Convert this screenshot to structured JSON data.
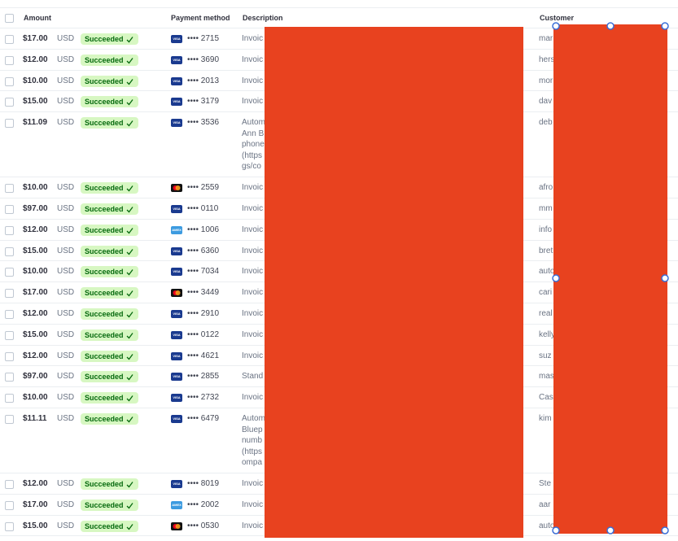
{
  "header": {
    "amount": "Amount",
    "payment_method": "Payment method",
    "description": "Description",
    "customer": "Customer"
  },
  "rows": [
    {
      "amount": "$17.00",
      "currency": "USD",
      "status": "Succeeded",
      "card": "VISA",
      "last4": "•••• 2715",
      "description": [
        "Invoic"
      ],
      "customer": "mar"
    },
    {
      "amount": "$12.00",
      "currency": "USD",
      "status": "Succeeded",
      "card": "VISA",
      "last4": "•••• 3690",
      "description": [
        "Invoic"
      ],
      "customer": "hers"
    },
    {
      "amount": "$10.00",
      "currency": "USD",
      "status": "Succeeded",
      "card": "VISA",
      "last4": "•••• 2013",
      "description": [
        "Invoic"
      ],
      "customer": "mor"
    },
    {
      "amount": "$15.00",
      "currency": "USD",
      "status": "Succeeded",
      "card": "VISA",
      "last4": "•••• 3179",
      "description": [
        "Invoic"
      ],
      "customer": "dav"
    },
    {
      "amount": "$11.09",
      "currency": "USD",
      "status": "Succeeded",
      "card": "VISA",
      "last4": "•••• 3536",
      "description": [
        "Autom",
        "Ann B",
        "phone",
        "(https",
        "gs/co"
      ],
      "customer": "deb"
    },
    {
      "amount": "$10.00",
      "currency": "USD",
      "status": "Succeeded",
      "card": null,
      "last4": "•••• 2559",
      "description": [
        "Invoic"
      ],
      "customer": "afro"
    },
    {
      "amount": "$97.00",
      "currency": "USD",
      "status": "Succeeded",
      "card": "VISA",
      "last4": "•••• 0110",
      "description": [
        "Invoic"
      ],
      "customer": "mm"
    },
    {
      "amount": "$12.00",
      "currency": "USD",
      "status": "Succeeded",
      "card": "AMEX",
      "last4": "•••• 1006",
      "description": [
        "Invoic"
      ],
      "customer": "info"
    },
    {
      "amount": "$15.00",
      "currency": "USD",
      "status": "Succeeded",
      "card": "VISA",
      "last4": "•••• 6360",
      "description": [
        "Invoic"
      ],
      "customer": "bret"
    },
    {
      "amount": "$10.00",
      "currency": "USD",
      "status": "Succeeded",
      "card": "VISA",
      "last4": "•••• 7034",
      "description": [
        "Invoic"
      ],
      "customer": "auto"
    },
    {
      "amount": "$17.00",
      "currency": "USD",
      "status": "Succeeded",
      "card": null,
      "last4": "•••• 3449",
      "description": [
        "Invoic"
      ],
      "customer": "cari"
    },
    {
      "amount": "$12.00",
      "currency": "USD",
      "status": "Succeeded",
      "card": "VISA",
      "last4": "•••• 2910",
      "description": [
        "Invoic"
      ],
      "customer": "real"
    },
    {
      "amount": "$15.00",
      "currency": "USD",
      "status": "Succeeded",
      "card": "VISA",
      "last4": "•••• 0122",
      "description": [
        "Invoic"
      ],
      "customer": "kelly"
    },
    {
      "amount": "$12.00",
      "currency": "USD",
      "status": "Succeeded",
      "card": "VISA",
      "last4": "•••• 4621",
      "description": [
        "Invoic"
      ],
      "customer": "suz"
    },
    {
      "amount": "$97.00",
      "currency": "USD",
      "status": "Succeeded",
      "card": "VISA",
      "last4": "•••• 2855",
      "description": [
        "Stand"
      ],
      "customer": "mas"
    },
    {
      "amount": "$10.00",
      "currency": "USD",
      "status": "Succeeded",
      "card": "VISA",
      "last4": "•••• 2732",
      "description": [
        "Invoic"
      ],
      "customer": "Cas"
    },
    {
      "amount": "$11.11",
      "currency": "USD",
      "status": "Succeeded",
      "card": "VISA",
      "last4": "•••• 6479",
      "description": [
        "Autom",
        "Bluep",
        "numb",
        "(https",
        "ompa"
      ],
      "customer": "kim"
    },
    {
      "amount": "$12.00",
      "currency": "USD",
      "status": "Succeeded",
      "card": "VISA",
      "last4": "•••• 8019",
      "description": [
        "Invoic"
      ],
      "customer": "Ste"
    },
    {
      "amount": "$17.00",
      "currency": "USD",
      "status": "Succeeded",
      "card": "AMEX",
      "last4": "•••• 2002",
      "description": [
        "Invoic"
      ],
      "customer": "aar"
    },
    {
      "amount": "$15.00",
      "currency": "USD",
      "status": "Succeeded",
      "card": null,
      "last4": "•••• 0530",
      "description": [
        "Invoic"
      ],
      "customer": "auto"
    }
  ]
}
